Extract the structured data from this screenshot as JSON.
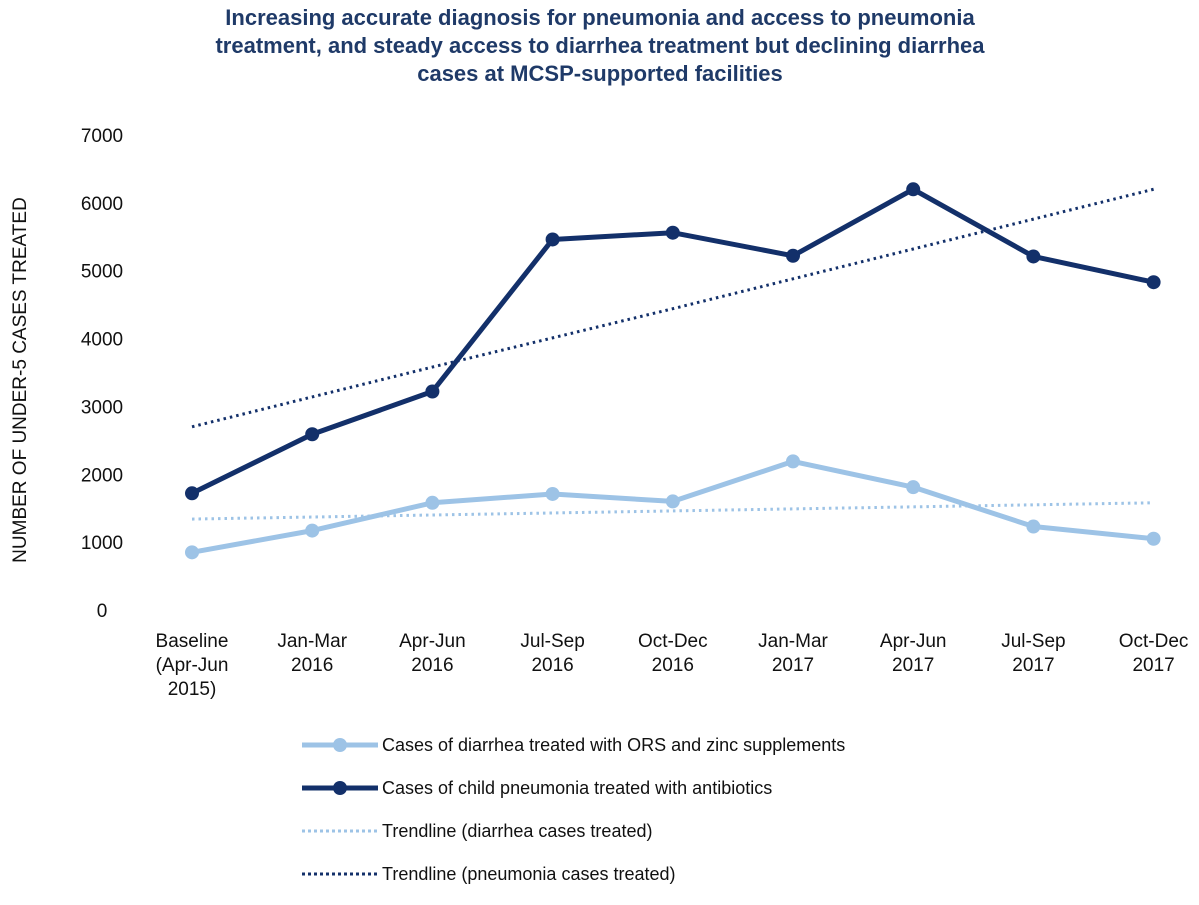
{
  "chart_data": {
    "type": "line",
    "title_lines": [
      "Increasing accurate diagnosis for pneumonia and access to pneumonia",
      "treatment, and steady access to diarrhea treatment but declining diarrhea",
      "cases at MCSP-supported facilities"
    ],
    "ylabel": "NUMBER OF UNDER-5 CASES TREATED",
    "xlabel": "",
    "ylim": [
      0,
      7000
    ],
    "yticks": [
      0,
      1000,
      2000,
      3000,
      4000,
      5000,
      6000,
      7000
    ],
    "categories": [
      [
        "Baseline",
        "(Apr-Jun",
        "2015)"
      ],
      [
        "Jan-Mar",
        "2016"
      ],
      [
        "Apr-Jun",
        "2016"
      ],
      [
        "Jul-Sep",
        "2016"
      ],
      [
        "Oct-Dec",
        "2016"
      ],
      [
        "Jan-Mar",
        "2017"
      ],
      [
        "Apr-Jun",
        "2017"
      ],
      [
        "Jul-Sep",
        "2017"
      ],
      [
        "Oct-Dec",
        "2017"
      ]
    ],
    "grid": false,
    "legend_position": "bottom",
    "series": [
      {
        "name": "Cases of diarrhea treated with ORS and zinc supplements",
        "values": [
          850,
          1170,
          1580,
          1710,
          1600,
          2190,
          1810,
          1230,
          1050
        ],
        "color": "#9DC3E6",
        "style": "solid",
        "markers": true
      },
      {
        "name": "Cases of child pneumonia treated with antibiotics",
        "values": [
          1720,
          2590,
          3220,
          5460,
          5560,
          5220,
          6200,
          5210,
          4830
        ],
        "color": "#13306A",
        "style": "solid",
        "markers": true
      },
      {
        "name": "Trendline (diarrhea cases treated)",
        "values": [
          1340,
          1370,
          1400,
          1430,
          1460,
          1490,
          1520,
          1550,
          1580
        ],
        "color": "#9DC3E6",
        "style": "dotted",
        "markers": false
      },
      {
        "name": "Trendline (pneumonia cases treated)",
        "values": [
          2700,
          3140,
          3580,
          4010,
          4440,
          4880,
          5320,
          5760,
          6200
        ],
        "color": "#13306A",
        "style": "dotted",
        "markers": false
      }
    ]
  }
}
